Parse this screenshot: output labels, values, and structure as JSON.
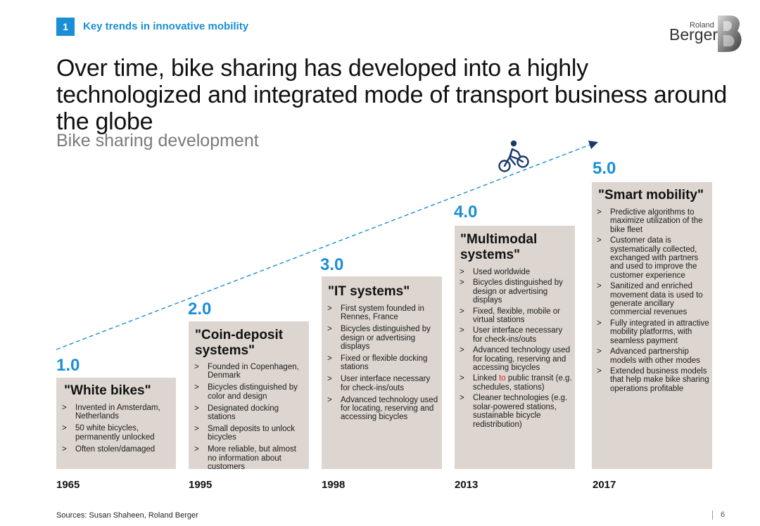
{
  "header": {
    "section_number": "1",
    "section_title": "Key trends in innovative mobility",
    "logo_line1": "Roland",
    "logo_line2": "Berger",
    "logo_mark": "B"
  },
  "headline": "Over time, bike sharing has developed into a highly technologized and integrated mode of transport business around the globe",
  "subtitle": "Bike sharing development",
  "icons": {
    "cyclist": "cyclist-icon",
    "arrow": "arrow-head-icon"
  },
  "colors": {
    "accent": "#1a8fd6",
    "box": "#ddd6d0",
    "highlight": "#e02020"
  },
  "stages": [
    {
      "version": "1.0",
      "title": "\"White bikes\"",
      "year": "1965",
      "items": [
        "Invented in Amsterdam, Netherlands",
        "50 white bicycles, permanently unlocked",
        "Often stolen/damaged"
      ]
    },
    {
      "version": "2.0",
      "title": "\"Coin-deposit systems\"",
      "year": "1995",
      "items": [
        "Founded in Copenhagen, Denmark",
        "Bicycles distinguished by color and design",
        "Designated docking stations",
        "Small deposits to unlock bicycles",
        "More reliable, but almost no information about customers"
      ]
    },
    {
      "version": "3.0",
      "title": "\"IT systems\"",
      "year": "1998",
      "items": [
        "First system founded in Rennes, France",
        "Bicycles distinguished by design or advertising displays",
        "Fixed or flexible docking stations",
        "User interface necessary for check-ins/outs",
        "Advanced technology used for locating, reserving and accessing bicycles"
      ]
    },
    {
      "version": "4.0",
      "title": "\"Multimodal systems\"",
      "year": "2013",
      "items": [
        "Used worldwide",
        "Bicycles distinguished by design or advertising displays",
        "Fixed, flexible, mobile or virtual stations",
        "User interface necessary for check-ins/outs",
        "Advanced technology used for locating, reserving and accessing bicycles",
        {
          "pre": "Linked ",
          "highlight": "to",
          "post": " public transit (e.g. schedules, stations)"
        },
        "Cleaner technologies (e.g. solar-powered stations, sustainable bicycle redistribution)"
      ]
    },
    {
      "version": "5.0",
      "title": "\"Smart mobility\"",
      "year": "2017",
      "items": [
        "Predictive algorithms to maximize utilization of the bike fleet",
        "Customer data is systematically collected, exchanged with partners and used to improve the customer experience",
        "Sanitized and enriched movement data is used to generate ancillary commercial revenues",
        "Fully integrated in attractive mobility platforms, with seamless payment",
        "Advanced partnership models with other modes",
        "Extended business models that help make bike sharing operations profitable"
      ]
    }
  ],
  "footer": {
    "sources": "Sources: Susan Shaheen, Roland Berger",
    "page": "6"
  }
}
